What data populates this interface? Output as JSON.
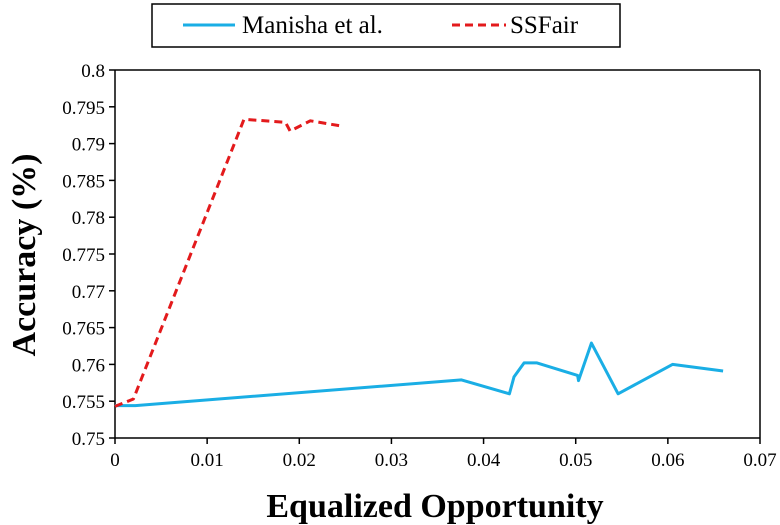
{
  "chart_data": {
    "type": "line",
    "xlabel": "Equalized Opportunity",
    "ylabel": "Accuracy (%)",
    "xlim": [
      0,
      0.07
    ],
    "ylim": [
      0.75,
      0.8
    ],
    "x_ticks": [
      "0",
      "0.01",
      "0.02",
      "0.03",
      "0.04",
      "0.05",
      "0.06",
      "0.07"
    ],
    "y_ticks": [
      "0.75",
      "0.755",
      "0.76",
      "0.765",
      "0.77",
      "0.775",
      "0.78",
      "0.785",
      "0.79",
      "0.795",
      "0.8"
    ],
    "grid": false,
    "legend_position": "top-center",
    "series": [
      {
        "name": "Manisha et al.",
        "color": "#1aaee5",
        "style": "solid",
        "points": [
          [
            0.0,
            0.7544
          ],
          [
            0.0022,
            0.7544
          ],
          [
            0.0376,
            0.7579
          ],
          [
            0.0428,
            0.756
          ],
          [
            0.0433,
            0.7583
          ],
          [
            0.0444,
            0.7602
          ],
          [
            0.0458,
            0.7602
          ],
          [
            0.0502,
            0.7585
          ],
          [
            0.0503,
            0.7578
          ],
          [
            0.0517,
            0.7629
          ],
          [
            0.0546,
            0.756
          ],
          [
            0.0605,
            0.76
          ],
          [
            0.066,
            0.7591
          ]
        ]
      },
      {
        "name": "SSFair",
        "color": "#e31a1c",
        "style": "dashed",
        "points": [
          [
            0.0,
            0.7543
          ],
          [
            0.002,
            0.7553
          ],
          [
            0.014,
            0.7933
          ],
          [
            0.0185,
            0.7929
          ],
          [
            0.019,
            0.7917
          ],
          [
            0.0212,
            0.7931
          ],
          [
            0.0245,
            0.7924
          ]
        ]
      }
    ]
  }
}
